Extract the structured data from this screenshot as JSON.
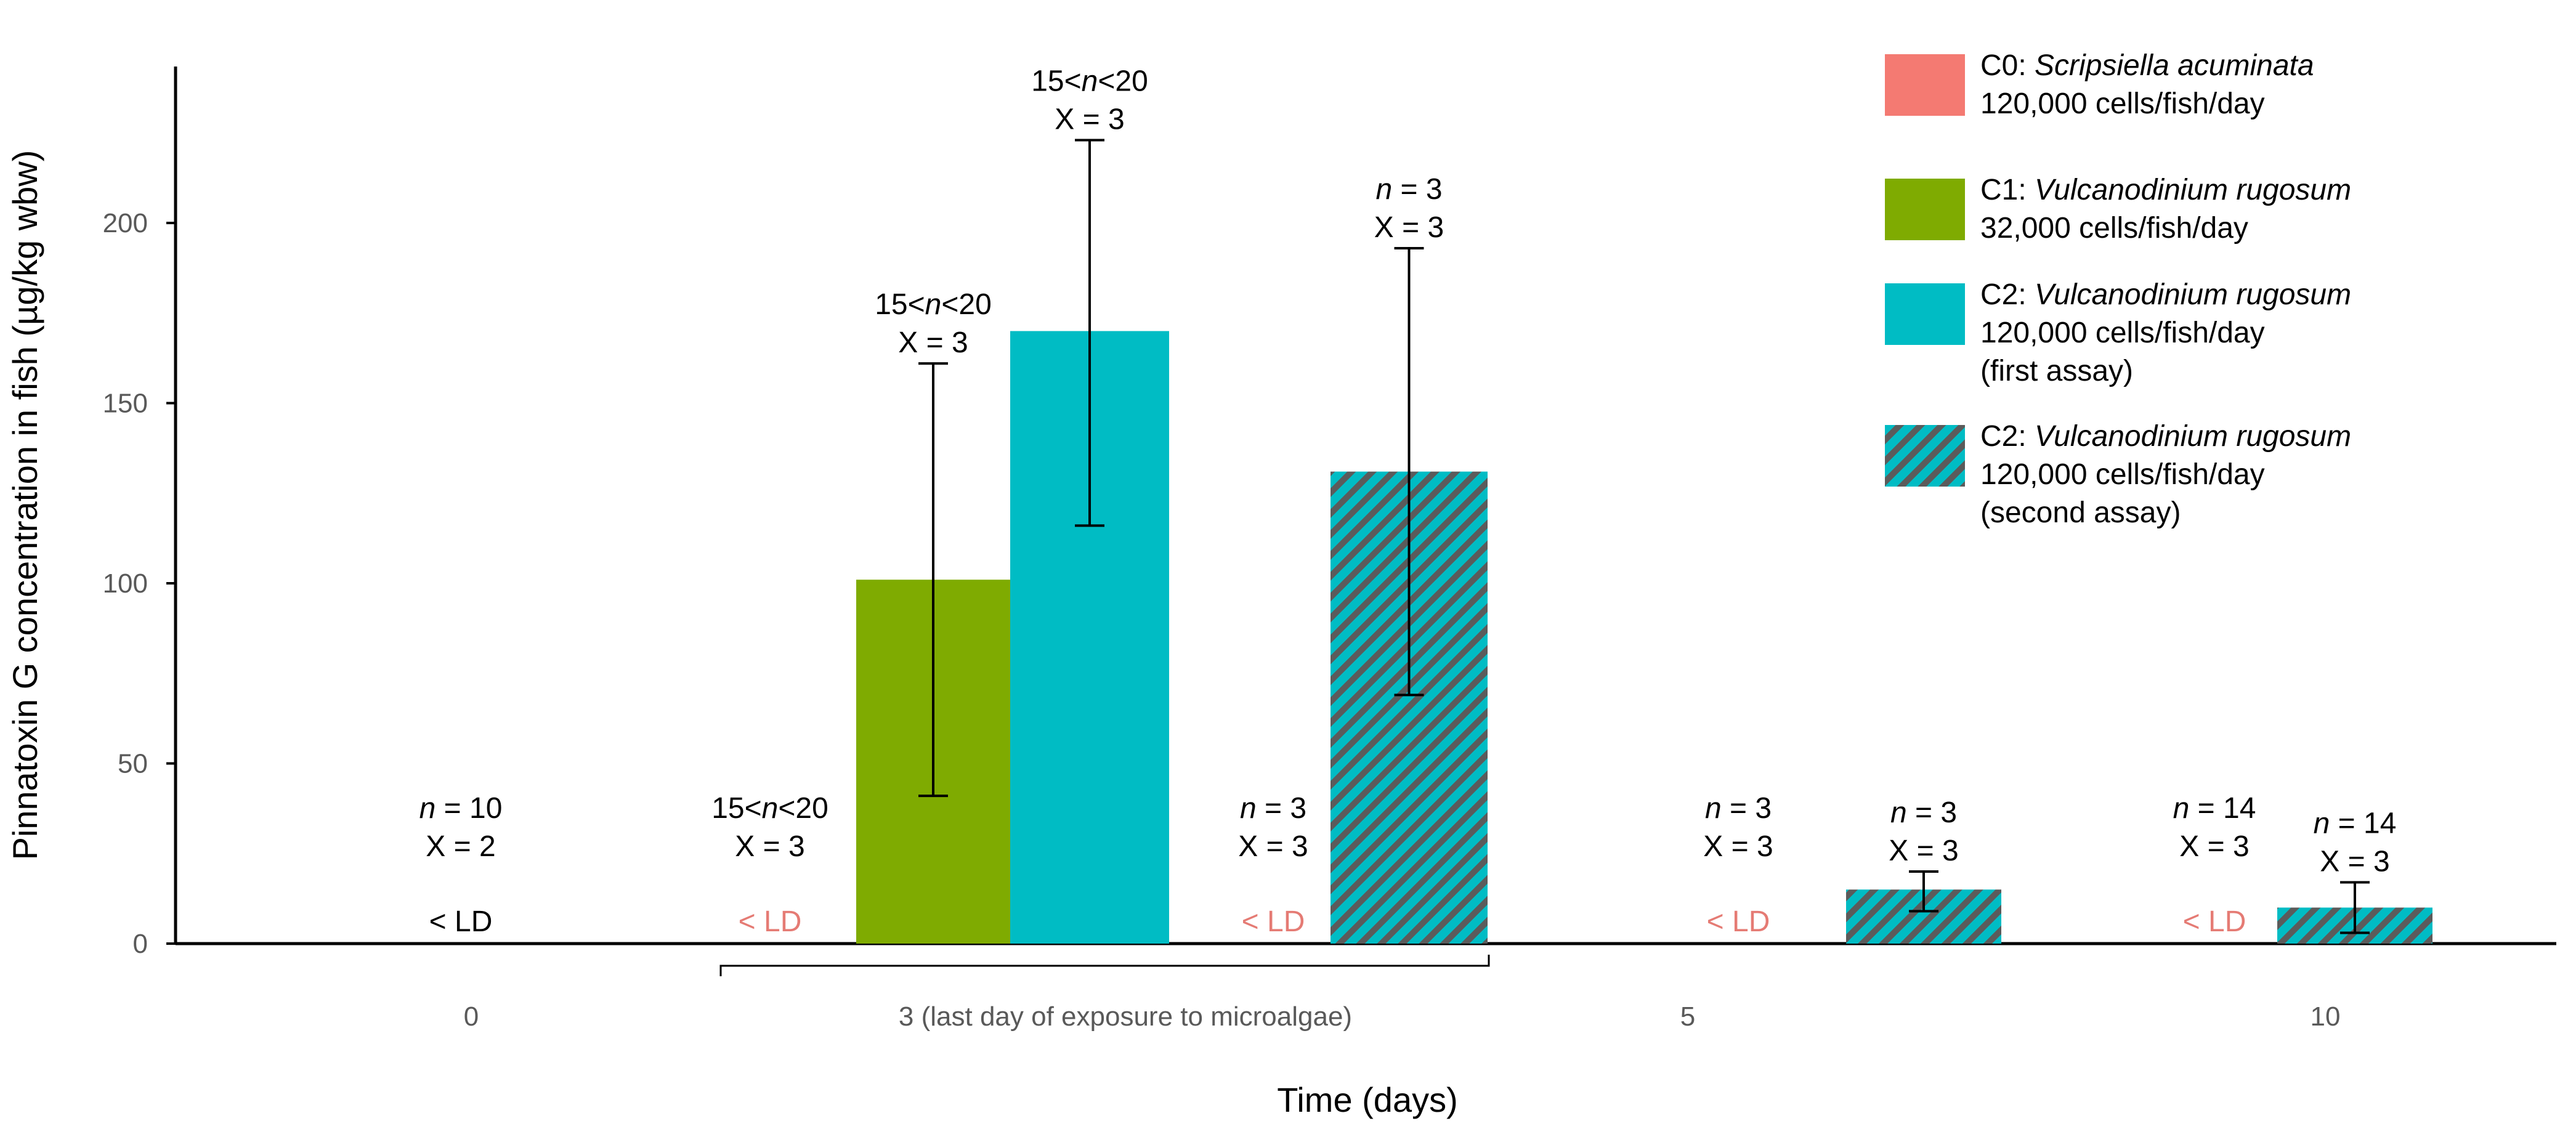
{
  "chart_data": {
    "type": "bar",
    "title": "",
    "xlabel": "Time (days)",
    "ylabel": "Pinnatoxin G concentration in fish (µg/kg wbw)",
    "ylim": [
      0,
      250
    ],
    "yticks": [
      "0",
      "50",
      "100",
      "150",
      "200"
    ],
    "categories": [
      "0",
      "3 (last day of exposure to microalgae)",
      "5",
      "10"
    ],
    "colors": {
      "C0": "#f47a72",
      "C1": "#7fab01",
      "C2_first": "#00bcc4",
      "C2_second": "#00bcc4",
      "C2_second_stripe": "#5b5b5b",
      "ld_red": "#e57b74",
      "ld_black": "#000000"
    },
    "series": [
      {
        "key": "C0",
        "name_prefix": "C0: ",
        "name_species": "Scripsiella acuminata",
        "dose": "120,000 cells/fish/day",
        "note": "",
        "pattern": "solid",
        "color": "C0"
      },
      {
        "key": "C1",
        "name_prefix": "C1: ",
        "name_species": "Vulcanodinium rugosum",
        "dose": "32,000 cells/fish/day",
        "note": "",
        "pattern": "solid",
        "color": "C1"
      },
      {
        "key": "C2a",
        "name_prefix": "C2: ",
        "name_species": "Vulcanodinium rugosum",
        "dose": "120,000 cells/fish/day",
        "note": "(first assay)",
        "pattern": "solid",
        "color": "C2_first"
      },
      {
        "key": "C2b",
        "name_prefix": "C2: ",
        "name_species": "Vulcanodinium rugosum",
        "dose": "120,000 cells/fish/day",
        "note": "(second assay)",
        "pattern": "hatched",
        "color": "C2_second"
      }
    ],
    "bars": [
      {
        "series": "C1",
        "day": "3",
        "value": 101,
        "err_low": 41,
        "err_high": 161,
        "n_label": "15<n<20",
        "x_label": "X = 3"
      },
      {
        "series": "C2a",
        "day": "3",
        "value": 170,
        "err_low": 116,
        "err_high": 223,
        "n_label": "15<n<20",
        "x_label": "X = 3"
      },
      {
        "series": "C2b",
        "day": "3",
        "value": 131,
        "err_low": 69,
        "err_high": 193,
        "n_label": "n = 3",
        "x_label": "X = 3"
      },
      {
        "series": "C2b",
        "day": "5",
        "value": 15,
        "err_low": 9,
        "err_high": 20,
        "n_label": "n = 3",
        "x_label": "X = 3"
      },
      {
        "series": "C2b",
        "day": "10",
        "value": 10,
        "err_low": 3,
        "err_high": 17,
        "n_label": "n = 14",
        "x_label": "X = 3"
      }
    ],
    "below_detection": [
      {
        "series": "C0",
        "day": "0",
        "label": "< LD",
        "color": "black",
        "n_label": "n = 10",
        "x_label": "X = 2"
      },
      {
        "series": "C0",
        "day": "3",
        "label": "< LD",
        "color": "red",
        "n_label": "15<n<20",
        "x_label": "X = 3"
      },
      {
        "series": "C2b-prior",
        "day": "3",
        "label": "< LD",
        "color": "red",
        "n_label": "n = 3",
        "x_label": "X = 3"
      },
      {
        "series": "C0",
        "day": "5",
        "label": "< LD",
        "color": "red",
        "n_label": "n = 3",
        "x_label": "X = 3"
      },
      {
        "series": "C0",
        "day": "10",
        "label": "< LD",
        "color": "red",
        "n_label": "n = 14",
        "x_label": "X = 3"
      }
    ]
  }
}
